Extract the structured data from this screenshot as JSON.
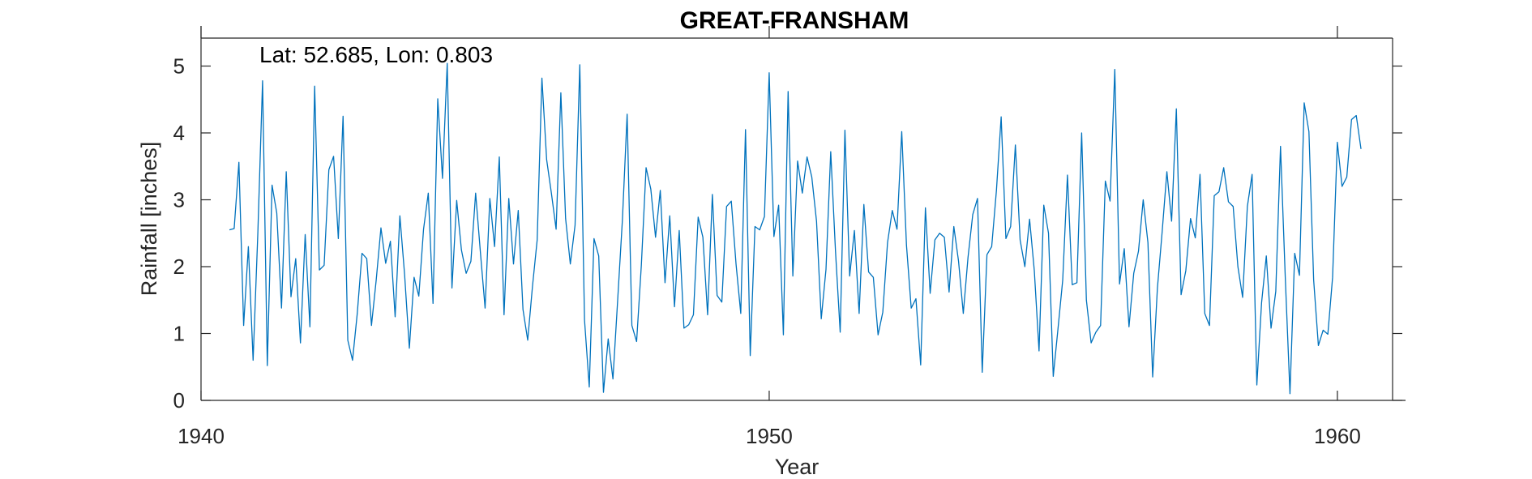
{
  "chart_data": {
    "type": "line",
    "title": "GREAT-FRANSHAM",
    "annotation": "Lat: 52.685, Lon: 0.803",
    "xlabel": "Year",
    "ylabel": "Rainfall [inches]",
    "xlim": [
      1940,
      1961.2
    ],
    "ylim": [
      0,
      5.6
    ],
    "xticks": [
      1940,
      1950,
      1960
    ],
    "yticks": [
      0,
      1,
      2,
      3,
      4,
      5
    ],
    "grid": false,
    "color": "#0072BD",
    "series": [
      {
        "start_year": 1940.5,
        "step_years": 0.08333,
        "values": [
          2.55,
          2.57,
          3.56,
          1.12,
          2.3,
          0.6,
          2.5,
          4.78,
          0.52,
          3.22,
          2.8,
          1.38,
          3.42,
          1.55,
          2.12,
          0.86,
          2.48,
          1.1,
          4.7,
          1.95,
          2.02,
          3.45,
          3.65,
          2.42,
          4.25,
          0.9,
          0.6,
          1.3,
          2.2,
          2.12,
          1.12,
          1.8,
          2.58,
          2.05,
          2.38,
          1.25,
          2.76,
          1.88,
          0.78,
          1.84,
          1.56,
          2.56,
          3.1,
          1.45,
          4.51,
          3.32,
          5.04,
          1.68,
          2.99,
          2.25,
          1.9,
          2.08,
          3.1,
          2.22,
          1.38,
          3.02,
          2.3,
          3.64,
          1.28,
          3.02,
          2.04,
          2.84,
          1.36,
          0.9,
          1.7,
          2.4,
          4.82,
          3.6,
          3.1,
          2.56,
          4.6,
          2.72,
          2.04,
          2.62,
          5.02,
          1.2,
          0.2,
          2.42,
          2.16,
          0.12,
          0.92,
          0.32,
          1.5,
          2.7,
          4.28,
          1.12,
          0.88,
          2.02,
          3.48,
          3.16,
          2.44,
          3.14,
          1.76,
          2.76,
          1.4,
          2.54,
          1.08,
          1.13,
          1.28,
          2.74,
          2.44,
          1.28,
          3.08,
          1.57,
          1.47,
          2.9,
          2.98,
          2.04,
          1.3,
          4.05,
          0.67,
          2.6,
          2.55,
          2.75,
          4.9,
          2.45,
          2.92,
          0.98,
          4.62,
          1.86,
          3.58,
          3.1,
          3.64,
          3.34,
          2.68,
          1.22,
          1.96,
          3.72,
          2.24,
          1.02,
          4.04,
          1.86,
          2.54,
          1.3,
          2.93,
          1.92,
          1.84,
          0.98,
          1.32,
          2.36,
          2.84,
          2.56,
          4.02,
          2.32,
          1.38,
          1.52,
          0.53,
          2.88,
          1.6,
          2.4,
          2.5,
          2.44,
          1.62,
          2.6,
          2.08,
          1.3,
          2.14,
          2.78,
          3.02,
          0.42,
          2.18,
          2.3,
          3.14,
          4.24,
          2.42,
          2.6,
          3.82,
          2.4,
          2.0,
          2.71,
          1.94,
          0.74,
          2.92,
          2.5,
          0.36,
          1.07,
          1.8,
          3.37,
          1.73,
          1.76,
          4.0,
          1.5,
          0.86,
          1.02,
          1.12,
          3.28,
          2.98,
          4.95,
          1.74,
          2.27,
          1.1,
          1.9,
          2.23,
          3.0,
          2.36,
          0.35,
          1.68,
          2.52,
          3.42,
          2.68,
          4.36,
          1.58,
          1.94,
          2.72,
          2.43,
          3.38,
          1.3,
          1.12,
          3.06,
          3.12,
          3.48,
          2.97,
          2.9,
          2.0,
          1.54,
          2.9,
          3.38,
          0.23,
          1.46,
          2.16,
          1.08,
          1.63,
          3.8,
          1.85,
          0.1,
          2.2,
          1.87,
          4.45,
          4.02,
          1.8,
          0.82,
          1.05,
          0.99,
          1.84,
          3.86,
          3.2,
          3.34,
          4.2,
          4.26,
          3.76
        ]
      }
    ]
  }
}
